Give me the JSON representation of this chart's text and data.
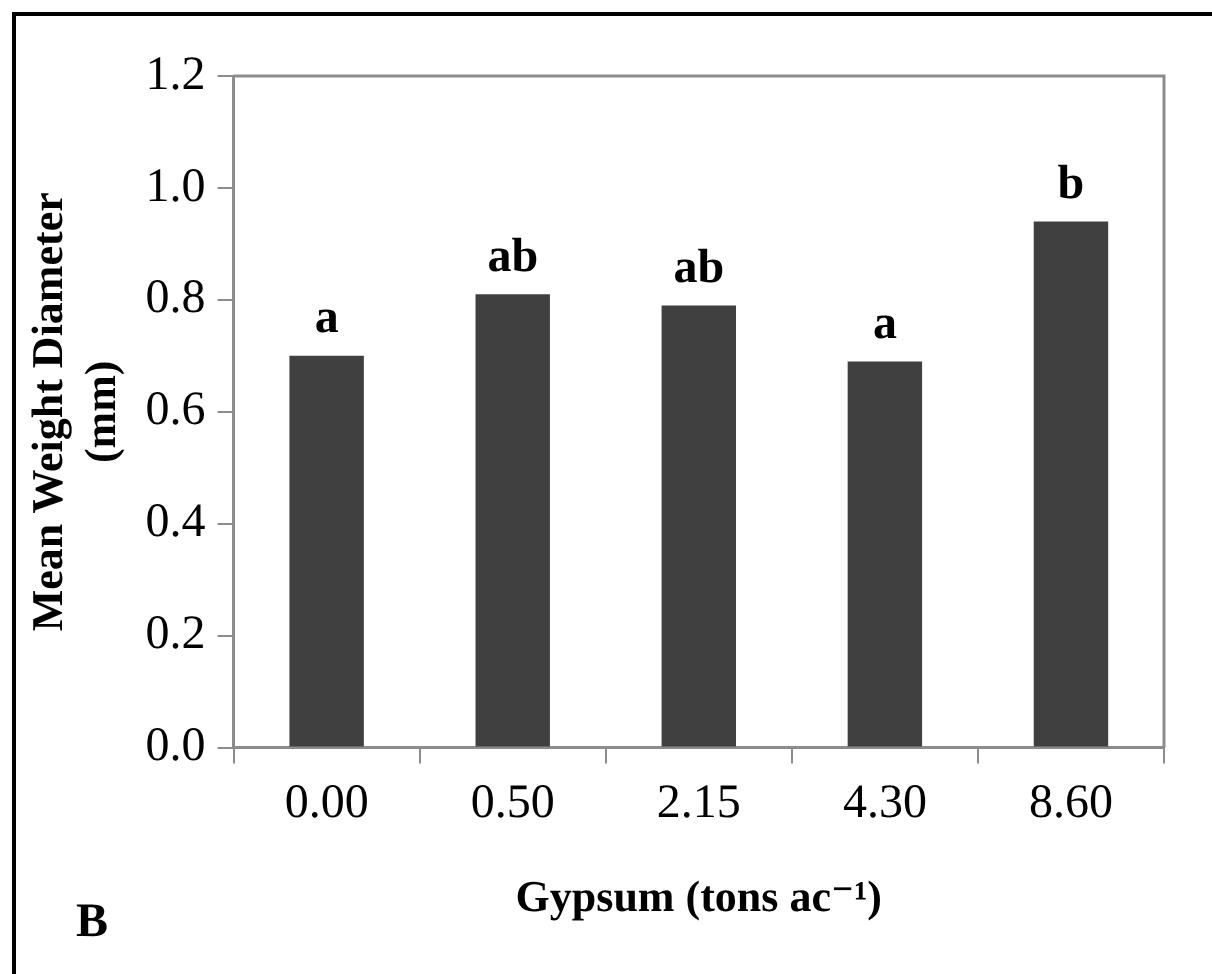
{
  "chart_data": {
    "type": "bar",
    "xlabel": "Gypsum (tons ac⁻¹)",
    "ylabel": "Mean Weight Diameter (mm)",
    "categories": [
      "0.00",
      "0.50",
      "2.15",
      "4.30",
      "8.60"
    ],
    "values": [
      0.7,
      0.81,
      0.79,
      0.69,
      0.94
    ],
    "color": "#404040",
    "ylim": [
      0,
      1.2
    ],
    "yticks": [
      {
        "value": 0,
        "label": "0.0"
      },
      {
        "value": 0.2,
        "label": "0.2"
      },
      {
        "value": 0.4,
        "label": "0.4"
      },
      {
        "value": 0.6,
        "label": "0.6"
      },
      {
        "value": 0.8,
        "label": "0.8"
      },
      {
        "value": 1,
        "label": "1.0"
      },
      {
        "value": 1.2,
        "label": "1.2"
      }
    ],
    "grid": false,
    "legend": false,
    "annotations": [
      {
        "text": "a",
        "x": "0.00",
        "y": 0.7
      },
      {
        "text": "ab",
        "x": "0.50",
        "y": 0.81
      },
      {
        "text": "ab",
        "x": "2.15",
        "y": 0.79
      },
      {
        "text": "a",
        "x": "4.30",
        "y": 0.69
      },
      {
        "text": "b",
        "x": "8.60",
        "y": 0.94
      },
      "B"
    ]
  }
}
